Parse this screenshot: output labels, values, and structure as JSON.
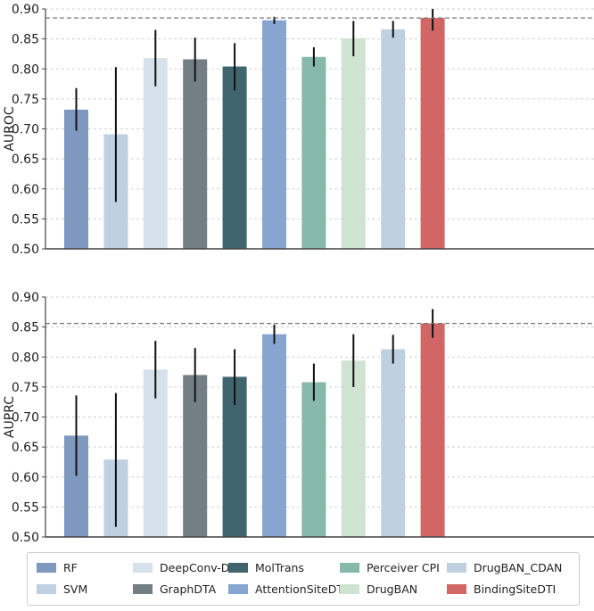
{
  "chart_data": [
    {
      "type": "bar",
      "ylabel": "AUROC",
      "ylim": [
        0.5,
        0.9
      ],
      "yticks": [
        "0.50",
        "0.55",
        "0.60",
        "0.65",
        "0.70",
        "0.75",
        "0.80",
        "0.85",
        "0.90"
      ],
      "grid": true,
      "reference_line": 0.885,
      "categories": [
        "RF",
        "SVM",
        "DeepConv-DTI",
        "GraphDTA",
        "MolTrans",
        "AttentionSiteDTI",
        "Perceiver CPI",
        "DrugBAN",
        "DrugBAN_CDAN",
        "BindingSiteDTI"
      ],
      "values": [
        0.732,
        0.691,
        0.818,
        0.816,
        0.804,
        0.881,
        0.82,
        0.851,
        0.866,
        0.885
      ],
      "err_low": [
        0.697,
        0.578,
        0.771,
        0.779,
        0.764,
        0.875,
        0.804,
        0.821,
        0.852,
        0.864
      ],
      "err_high": [
        0.768,
        0.803,
        0.865,
        0.852,
        0.843,
        0.887,
        0.836,
        0.88,
        0.88,
        0.9
      ]
    },
    {
      "type": "bar",
      "ylabel": "AUPRC",
      "ylim": [
        0.5,
        0.9
      ],
      "yticks": [
        "0.50",
        "0.55",
        "0.60",
        "0.65",
        "0.70",
        "0.75",
        "0.80",
        "0.85",
        "0.90"
      ],
      "grid": true,
      "reference_line": 0.856,
      "categories": [
        "RF",
        "SVM",
        "DeepConv-DTI",
        "GraphDTA",
        "MolTrans",
        "AttentionSiteDTI",
        "Perceiver CPI",
        "DrugBAN",
        "DrugBAN_CDAN",
        "BindingSiteDTI"
      ],
      "values": [
        0.669,
        0.629,
        0.779,
        0.77,
        0.767,
        0.838,
        0.758,
        0.794,
        0.813,
        0.856
      ],
      "err_low": [
        0.602,
        0.517,
        0.731,
        0.725,
        0.72,
        0.822,
        0.727,
        0.75,
        0.789,
        0.832
      ],
      "err_high": [
        0.736,
        0.74,
        0.827,
        0.815,
        0.813,
        0.854,
        0.789,
        0.838,
        0.837,
        0.88
      ]
    }
  ],
  "colors": [
    "#7f98bf",
    "#bfd1e0",
    "#d6e1eb",
    "#737f84",
    "#41656e",
    "#87a5d0",
    "#86b9aa",
    "#cfe3d1",
    "#bfd1e1",
    "#d06766"
  ],
  "legend": {
    "placement": "bottom",
    "items": [
      "RF",
      "SVM",
      "DeepConv-DTI",
      "GraphDTA",
      "MolTrans",
      "AttentionSiteDTI",
      "Perceiver CPI",
      "DrugBAN",
      "DrugBAN_CDAN",
      "BindingSiteDTI"
    ]
  }
}
